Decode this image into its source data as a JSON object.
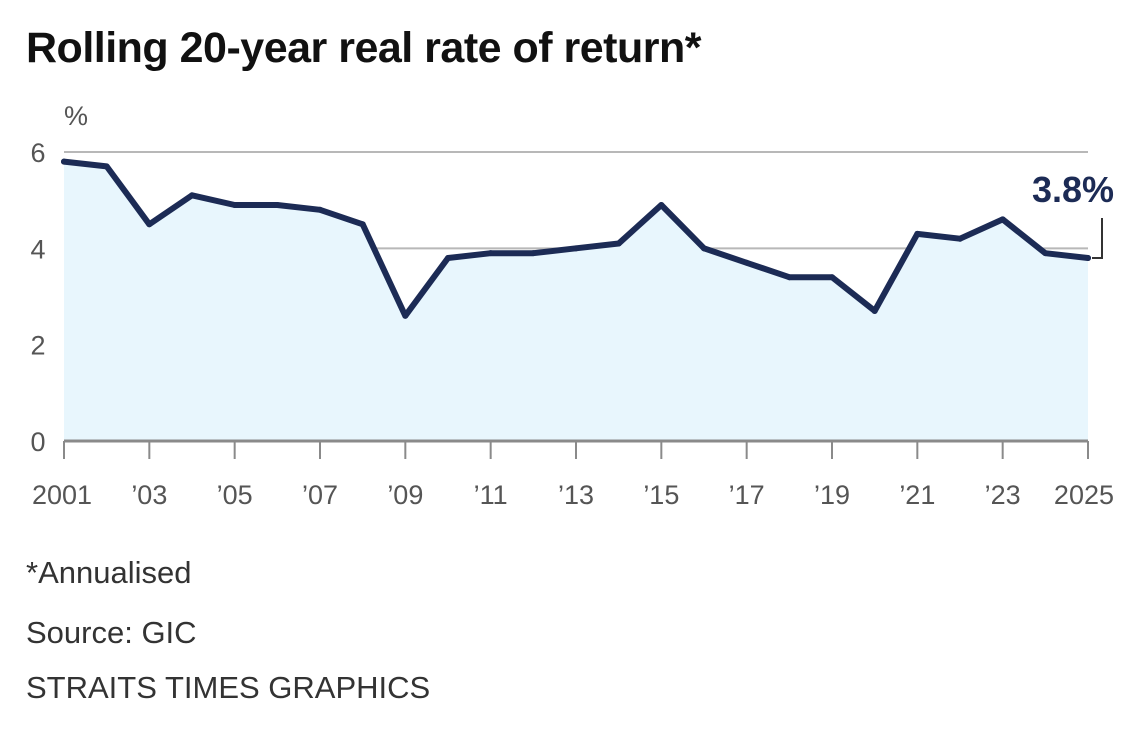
{
  "chart_data": {
    "type": "area",
    "title": "Rolling 20-year real rate of return*",
    "ylabel": "%",
    "xlabel": "",
    "x": [
      2001,
      2002,
      2003,
      2004,
      2005,
      2006,
      2007,
      2008,
      2009,
      2010,
      2011,
      2012,
      2013,
      2014,
      2015,
      2016,
      2017,
      2018,
      2019,
      2020,
      2021,
      2022,
      2023,
      2024,
      2025
    ],
    "series": [
      {
        "values": [
          5.8,
          5.7,
          4.5,
          5.1,
          4.9,
          4.9,
          4.8,
          4.5,
          2.6,
          3.8,
          3.9,
          3.9,
          4.0,
          4.1,
          4.9,
          4.0,
          3.7,
          3.4,
          3.4,
          2.7,
          4.3,
          4.2,
          4.6,
          3.9,
          3.8
        ]
      }
    ],
    "xlim": [
      2001,
      2025
    ],
    "ylim": [
      0,
      6
    ],
    "y_ticks": [
      0,
      2,
      4,
      6
    ],
    "x_ticks": [
      {
        "value": 2001,
        "label": "2001"
      },
      {
        "value": 2003,
        "label": "’03"
      },
      {
        "value": 2005,
        "label": "’05"
      },
      {
        "value": 2007,
        "label": "’07"
      },
      {
        "value": 2009,
        "label": "’09"
      },
      {
        "value": 2011,
        "label": "’11"
      },
      {
        "value": 2013,
        "label": "’13"
      },
      {
        "value": 2015,
        "label": "’15"
      },
      {
        "value": 2017,
        "label": "’17"
      },
      {
        "value": 2019,
        "label": "’19"
      },
      {
        "value": 2021,
        "label": "’21"
      },
      {
        "value": 2023,
        "label": "’23"
      },
      {
        "value": 2025,
        "label": "2025"
      }
    ],
    "grid": true,
    "annotation": {
      "x": 2025,
      "y": 3.8,
      "text": "3.8%"
    },
    "colors": {
      "line": "#1c2b55",
      "fill": "#e8f6fd",
      "grid": "#b8b8b8",
      "axis": "#8a8a8a"
    }
  },
  "footer": {
    "note": "*Annualised",
    "source": "Source: GIC",
    "credit": "STRAITS TIMES GRAPHICS"
  }
}
